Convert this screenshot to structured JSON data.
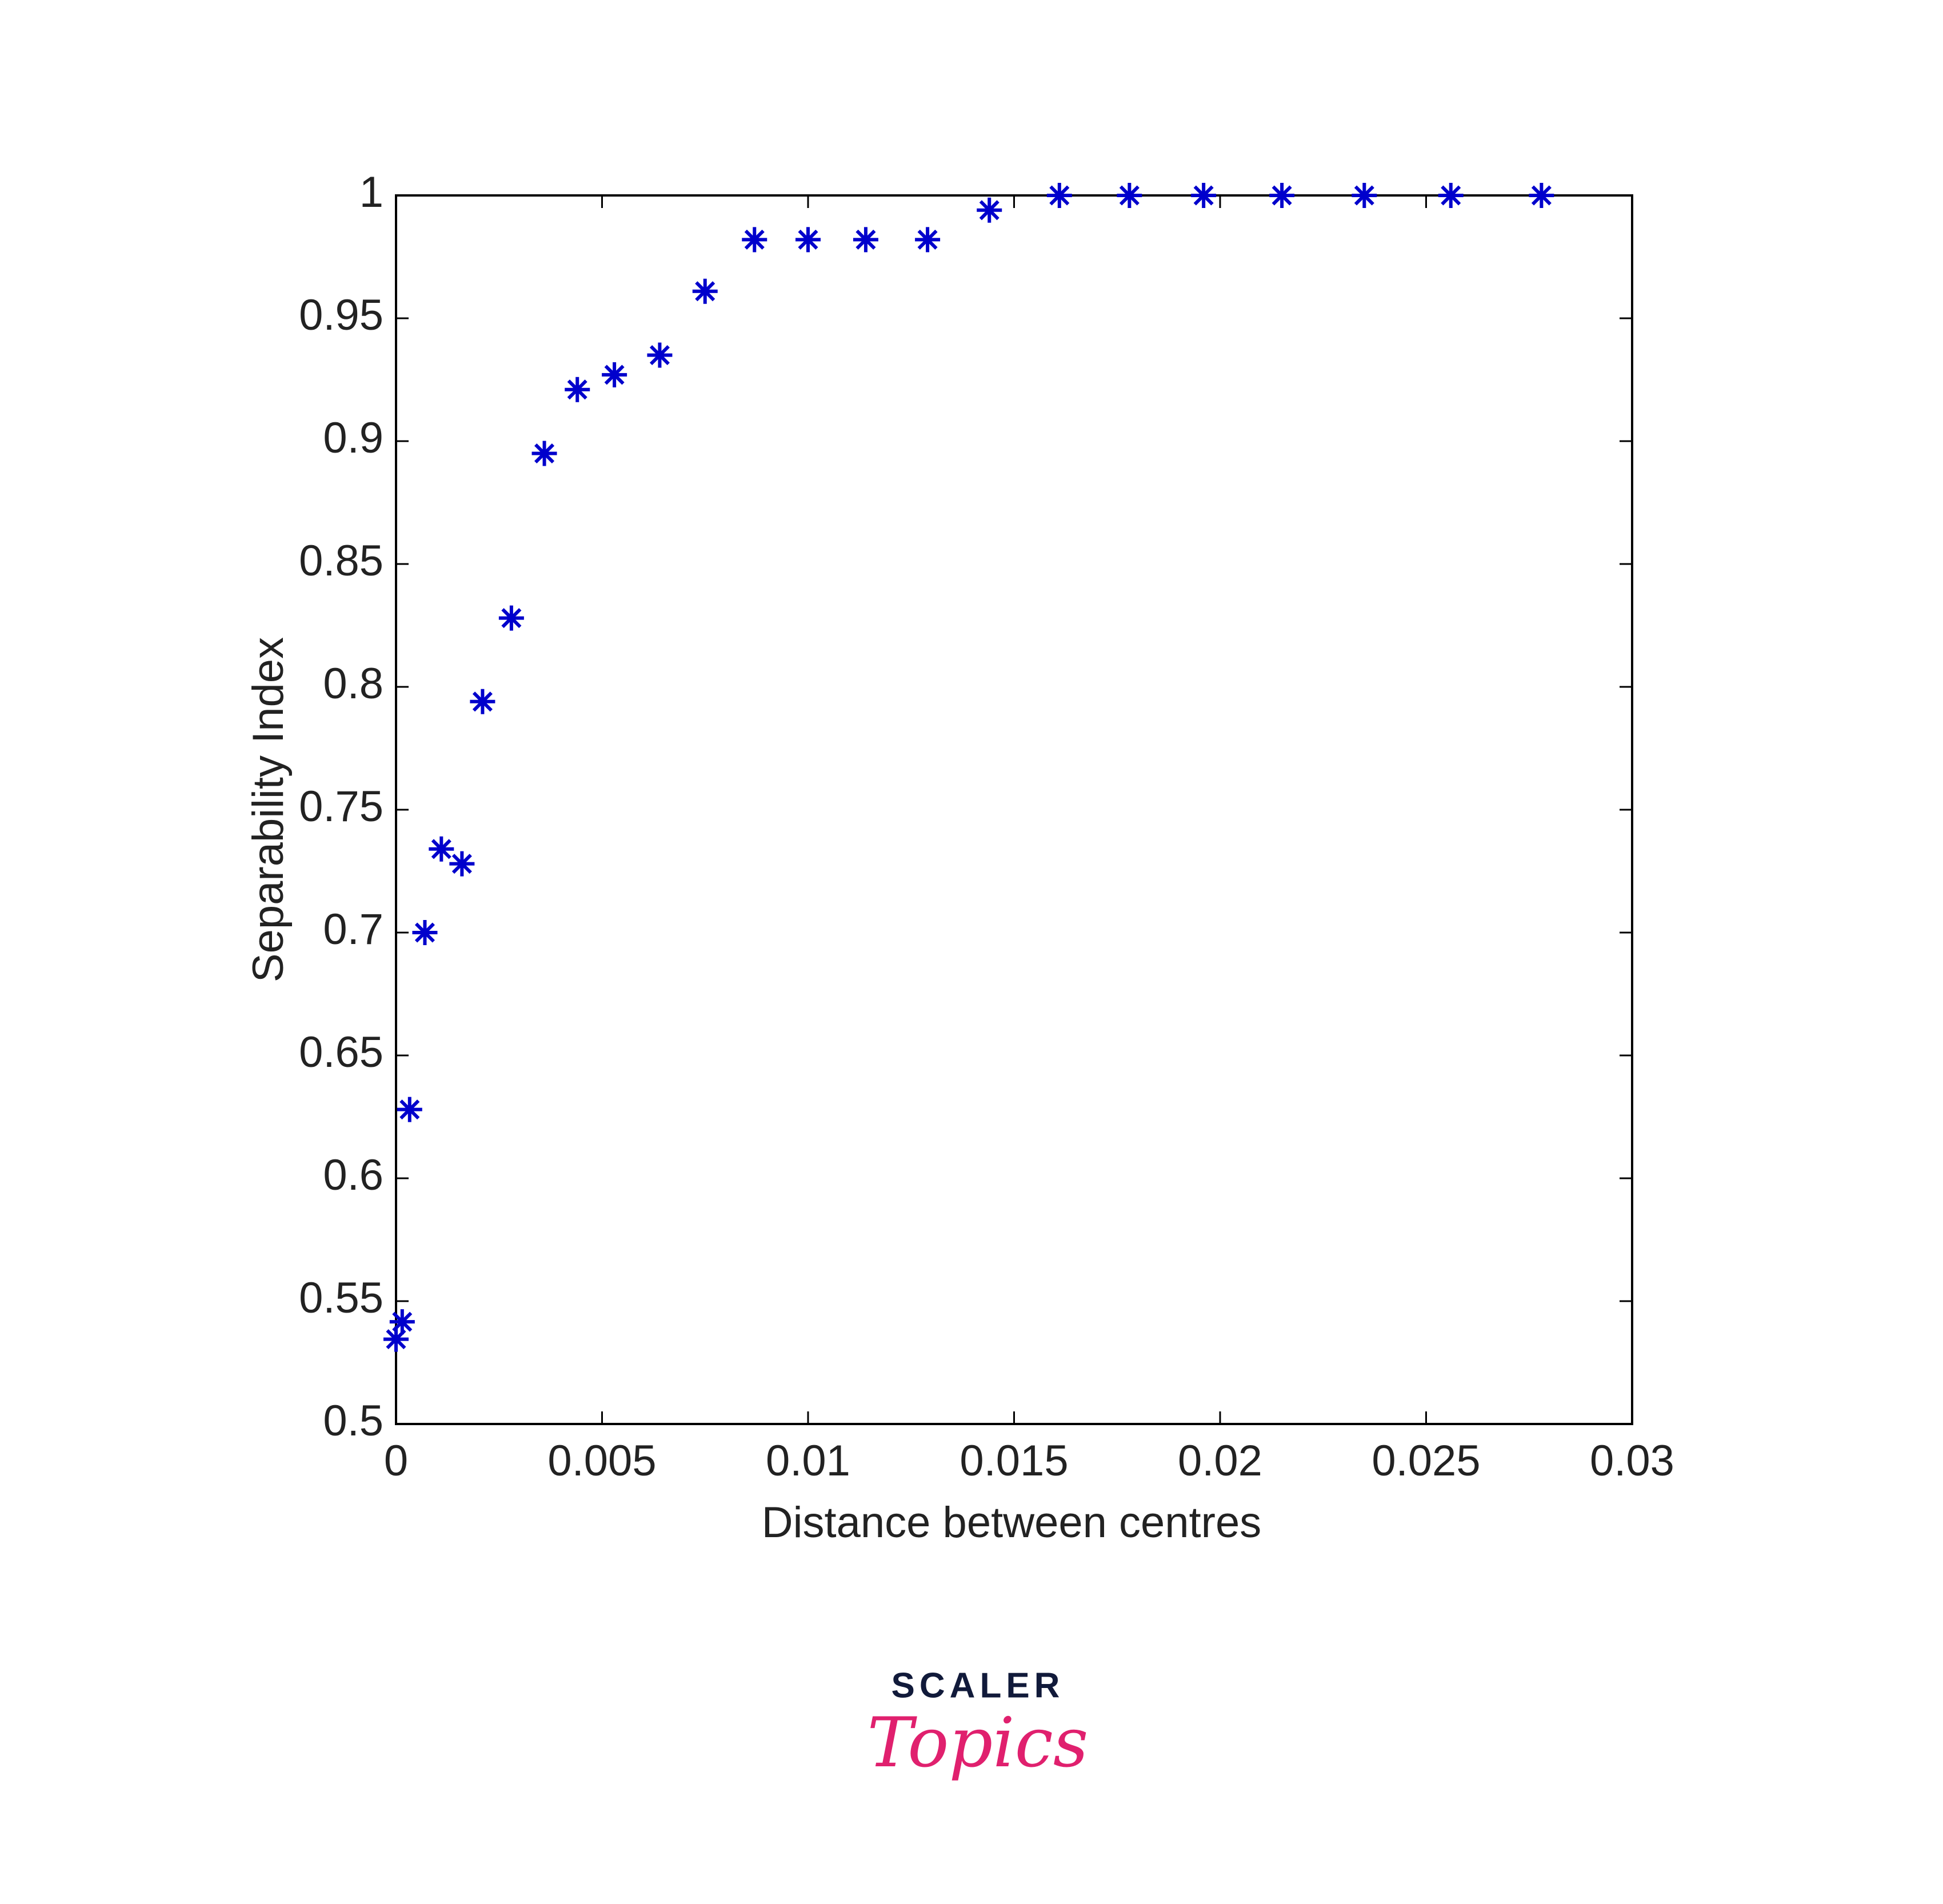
{
  "chart_data": {
    "type": "scatter",
    "xlabel": "Distance between centres",
    "ylabel": "Separability Index",
    "series": [
      {
        "color": "#0000cc",
        "marker": "asterisk",
        "x": [
          0,
          0.00015,
          0.00033,
          0.0007,
          0.0011,
          0.0016,
          0.0021,
          0.0028,
          0.0036,
          0.0044,
          0.0053,
          0.0064,
          0.0075,
          0.0087,
          0.01,
          0.0114,
          0.0129,
          0.0144,
          0.0161,
          0.0178,
          0.0196,
          0.0215,
          0.0235,
          0.0256,
          0.0278
        ],
        "values": [
          0.5345,
          0.5416,
          0.628,
          0.7,
          0.734,
          0.728,
          0.794,
          0.828,
          0.895,
          0.921,
          0.927,
          0.935,
          0.961,
          0.982,
          0.982,
          0.982,
          0.982,
          0.994,
          1,
          1,
          1,
          1,
          1,
          1,
          1
        ]
      }
    ],
    "xlim": [
      0,
      0.03
    ],
    "xticks": [
      0,
      0.005,
      0.01,
      0.015,
      0.02,
      0.025,
      0.03
    ],
    "ylim": [
      0.5,
      1
    ],
    "yticks": [
      0.5,
      0.55,
      0.6,
      0.65,
      0.7,
      0.75,
      0.8,
      0.85,
      0.9,
      0.95,
      1
    ],
    "grid": false
  },
  "branding": {
    "name": "SCALER",
    "product": "Topics"
  }
}
